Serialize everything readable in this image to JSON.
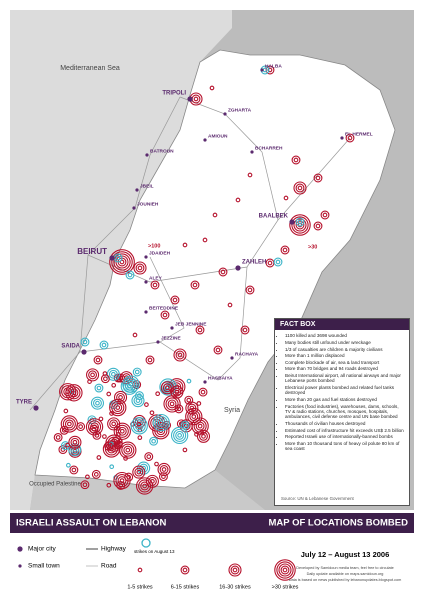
{
  "map": {
    "regions": [
      "Mediterranean Sea",
      "Syria",
      "Occupied Palestine"
    ],
    "major_cities": [
      "TRIPOLI",
      "BEIRUT",
      "SAIDA",
      "TYRE",
      "ZAHLEH",
      "BAALBEK"
    ],
    "towns": [
      "HALBA",
      "ZGHARTA",
      "AMIOUN",
      "BCHARREH",
      "EL HERMEL",
      "BATROUN",
      "JBEIL",
      "JOUNIEH",
      "JDAIDEH",
      "ALEY",
      "BEITEDDINE",
      "JEB JENNINE",
      "JEZZINE",
      "RACHAYA",
      "HASBAIYA"
    ],
    "strike_notes": [
      ">100",
      ">30"
    ]
  },
  "fact_box": {
    "title": "FACT BOX",
    "items": [
      "1100 killed and 3698 wounded",
      "Many bodies still unfound under wreckage",
      "1/3 of casualties are children & majority civilians",
      "More than 1 million displaced",
      "Complete blockade of air, sea & land transport",
      "More than 70 bridges and 94 roads destroyed",
      "Beirut International airport, all national airways and major Lebanese ports bombed",
      "Electrical power plants bombed and related fuel tanks destroyed",
      "More than 20 gas and fuel stations destroyed",
      "Factories (food industries), warehouses, dams, schools, TV & radio stations, churches, mosques, hospitals, ambulances, civil defense centre and UN base bombed",
      "Thousands of civilian houses destroyed",
      "Estimated cost of infrastructure hit exceeds US$ 2.5 billion",
      "Reported Israeli use of internationally-banned bombs",
      "More than 10 thousand tons of heavy oil polute 80 km of sea coast"
    ],
    "source": "Source: UN & Lebanese Government"
  },
  "title_bar": {
    "left": "ISRAELI ASSAULT ON LEBANON",
    "right": "MAP OF LOCATIONS BOMBED"
  },
  "legend": {
    "major_city": "Major city",
    "small_town": "Small town",
    "highway": "Highway",
    "road": "Road",
    "august_13": "strikes on August 13",
    "strike_classes": [
      "1-5 strikes",
      "6-15 strikes",
      "16-30 strikes",
      ">30 strikes"
    ]
  },
  "date_range": "July 12 – August 13 2006",
  "credits": [
    "Developed by Samidoun media team, feel free to circulate",
    "Daily update available on maps.samidoun.org",
    "Data is based on news published by lebanonupdates.blogspot.com"
  ]
}
